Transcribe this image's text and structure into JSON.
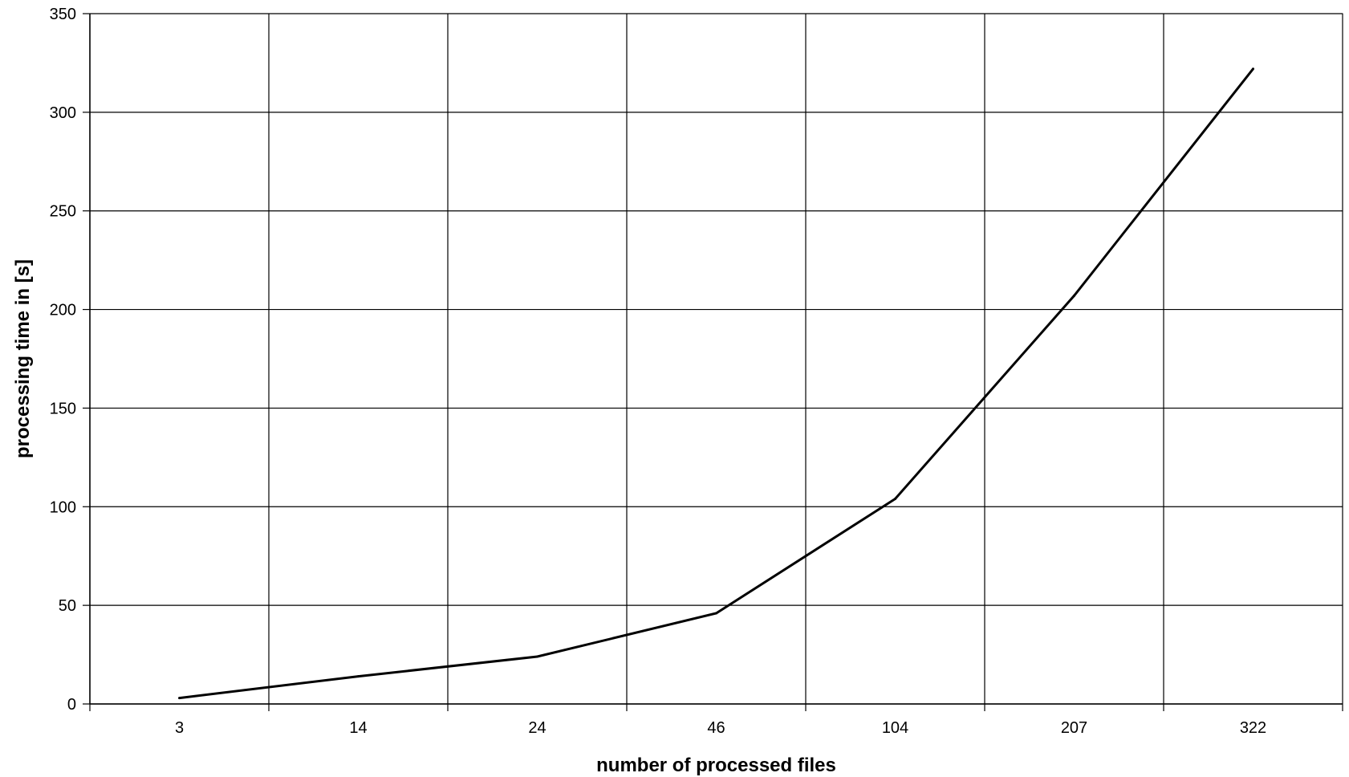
{
  "chart_data": {
    "type": "line",
    "title": "",
    "xlabel": "number of processed files",
    "ylabel": "processing time in [s]",
    "categories": [
      "3",
      "14",
      "24",
      "46",
      "104",
      "207",
      "322"
    ],
    "series": [
      {
        "values": [
          3,
          14,
          24,
          46,
          104,
          207,
          322
        ]
      }
    ],
    "ylim": [
      0,
      350
    ],
    "yticks": [
      0,
      50,
      100,
      150,
      200,
      250,
      300,
      350
    ],
    "grid": true,
    "legend": "none",
    "colors": {
      "line": "#000000",
      "grid": "#000000",
      "background": "#ffffff"
    }
  }
}
